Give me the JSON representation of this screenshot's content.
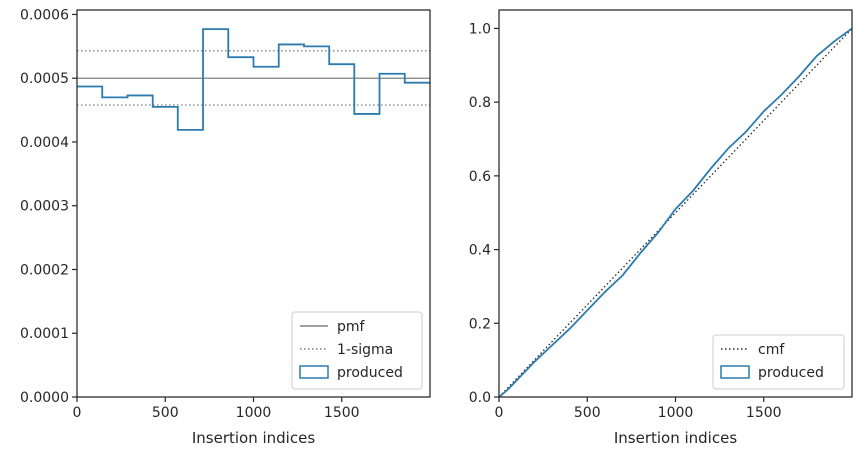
{
  "chart_data": [
    {
      "type": "line",
      "step": true,
      "xlabel": "Insertion indices",
      "ylabel": "",
      "xlim": [
        0,
        2000
      ],
      "ylim": [
        0,
        0.000607
      ],
      "xticks": [
        0,
        500,
        1000,
        1500
      ],
      "xtick_labels": [
        "0",
        "500",
        "1000",
        "1500"
      ],
      "yticks": [
        0,
        0.0001,
        0.0002,
        0.0003,
        0.0004,
        0.0005,
        0.0006
      ],
      "ytick_labels": [
        "0.0000",
        "0.0001",
        "0.0002",
        "0.0003",
        "0.0004",
        "0.0005",
        "0.0006"
      ],
      "grid": false,
      "legend_position": "lower-right",
      "legend": [
        "pmf",
        "1-sigma",
        "produced"
      ],
      "reference_lines": [
        {
          "name": "pmf",
          "y": 0.0005,
          "style": "solid",
          "color": "#808080"
        },
        {
          "name": "1-sigma",
          "y": 0.000543,
          "style": "dotted",
          "color": "#808080"
        },
        {
          "name": "1-sigma",
          "y": 0.000458,
          "style": "dotted",
          "color": "#808080"
        }
      ],
      "series": [
        {
          "name": "produced",
          "color": "#2b7bb0",
          "bin_edges": [
            0,
            143,
            286,
            429,
            571,
            714,
            857,
            1000,
            1143,
            1286,
            1429,
            1571,
            1714,
            1857,
            2000
          ],
          "values": [
            0.000487,
            0.00047,
            0.000473,
            0.000455,
            0.000419,
            0.000577,
            0.000533,
            0.000518,
            0.000553,
            0.00055,
            0.000522,
            0.000444,
            0.000507,
            0.000493
          ]
        }
      ]
    },
    {
      "type": "line",
      "xlabel": "Insertion indices",
      "ylabel": "",
      "xlim": [
        0,
        2000
      ],
      "ylim": [
        0,
        1.05
      ],
      "xticks": [
        0,
        500,
        1000,
        1500
      ],
      "xtick_labels": [
        "0",
        "500",
        "1000",
        "1500"
      ],
      "yticks": [
        0,
        0.2,
        0.4,
        0.6,
        0.8,
        1.0
      ],
      "ytick_labels": [
        "0.0",
        "0.2",
        "0.4",
        "0.6",
        "0.8",
        "1.0"
      ],
      "grid": false,
      "legend_position": "lower-right",
      "legend": [
        "cmf",
        "produced"
      ],
      "series": [
        {
          "name": "cmf",
          "style": "dotted",
          "color": "#262626",
          "x": [
            0,
            2000
          ],
          "y": [
            0,
            1
          ]
        },
        {
          "name": "produced",
          "color": "#2b7bb0",
          "x": [
            0,
            50,
            100,
            200,
            300,
            400,
            500,
            600,
            700,
            800,
            900,
            1000,
            1100,
            1200,
            1300,
            1400,
            1500,
            1600,
            1700,
            1800,
            1900,
            2000
          ],
          "y": [
            0,
            0.02,
            0.045,
            0.095,
            0.14,
            0.185,
            0.235,
            0.285,
            0.33,
            0.39,
            0.445,
            0.51,
            0.56,
            0.62,
            0.675,
            0.72,
            0.775,
            0.82,
            0.87,
            0.925,
            0.965,
            1.0
          ]
        }
      ]
    }
  ]
}
